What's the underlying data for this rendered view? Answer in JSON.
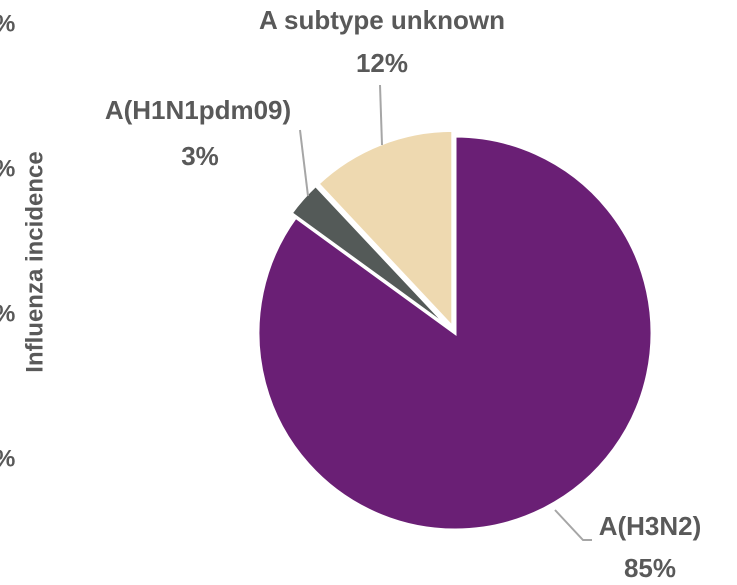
{
  "chart_data": {
    "type": "pie",
    "categories": [
      "A(H3N2)",
      "A(H1N1pdm09)",
      "A subtype unknown"
    ],
    "values": [
      85,
      3,
      12
    ],
    "value_labels": [
      "85%",
      "3%",
      "12%"
    ],
    "colors": [
      "#6a1f75",
      "#545a58",
      "#eed9b0"
    ],
    "ylabel": "Influenza incidence",
    "cropped_tick_labels": [
      "%",
      "%",
      "%",
      "%"
    ]
  }
}
